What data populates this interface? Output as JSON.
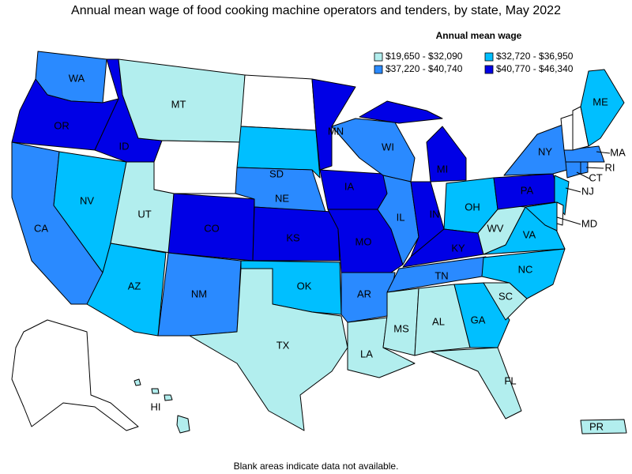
{
  "title": "Annual mean wage of food cooking machine operators and tenders, by state, May 2022",
  "legend": {
    "title": "Annual mean wage",
    "items": [
      {
        "label": "$19,650 - $32,090",
        "color": "#b2eeee"
      },
      {
        "label": "$32,720 - $36,950",
        "color": "#00bfff"
      },
      {
        "label": "$37,220 - $40,740",
        "color": "#2a8aff"
      },
      {
        "label": "$40,770 - $46,340",
        "color": "#0000e6"
      }
    ]
  },
  "states": [
    {
      "label": "WA",
      "color": "#2a8aff"
    },
    {
      "label": "OR",
      "color": "#0000e6"
    },
    {
      "label": "CA",
      "color": "#2a8aff"
    },
    {
      "label": "NV",
      "color": "#00bfff"
    },
    {
      "label": "ID",
      "color": "#0000e6"
    },
    {
      "label": "MT",
      "color": "#b2eeee"
    },
    {
      "label": "UT",
      "color": "#b2eeee"
    },
    {
      "label": "AZ",
      "color": "#00bfff"
    },
    {
      "label": "CO",
      "color": "#0000e6"
    },
    {
      "label": "NM",
      "color": "#2a8aff"
    },
    {
      "label": "SD",
      "color": "#00bfff"
    },
    {
      "label": "NE",
      "color": "#2a8aff"
    },
    {
      "label": "KS",
      "color": "#0000e6"
    },
    {
      "label": "OK",
      "color": "#00bfff"
    },
    {
      "label": "TX",
      "color": "#b2eeee"
    },
    {
      "label": "MN",
      "color": "#0000e6"
    },
    {
      "label": "IA",
      "color": "#0000e6"
    },
    {
      "label": "MO",
      "color": "#0000e6"
    },
    {
      "label": "AR",
      "color": "#2a8aff"
    },
    {
      "label": "LA",
      "color": "#b2eeee"
    },
    {
      "label": "WI",
      "color": "#2a8aff"
    },
    {
      "label": "IL",
      "color": "#2a8aff"
    },
    {
      "label": "MI",
      "color": "#0000e6"
    },
    {
      "label": "IN",
      "color": "#0000e6"
    },
    {
      "label": "OH",
      "color": "#00bfff"
    },
    {
      "label": "KY",
      "color": "#0000e6"
    },
    {
      "label": "TN",
      "color": "#2a8aff"
    },
    {
      "label": "MS",
      "color": "#b2eeee"
    },
    {
      "label": "AL",
      "color": "#b2eeee"
    },
    {
      "label": "GA",
      "color": "#00bfff"
    },
    {
      "label": "FL",
      "color": "#b2eeee"
    },
    {
      "label": "SC",
      "color": "#b2eeee"
    },
    {
      "label": "NC",
      "color": "#00bfff"
    },
    {
      "label": "VA",
      "color": "#00bfff"
    },
    {
      "label": "WV",
      "color": "#b2eeee"
    },
    {
      "label": "PA",
      "color": "#0000e6"
    },
    {
      "label": "NY",
      "color": "#2a8aff"
    },
    {
      "label": "NJ",
      "color": "#00bfff"
    },
    {
      "label": "MD",
      "color": "#00bfff"
    },
    {
      "label": "CT",
      "color": "#2a8aff"
    },
    {
      "label": "RI",
      "color": "#2a8aff"
    },
    {
      "label": "MA",
      "color": "#2a8aff"
    },
    {
      "label": "ME",
      "color": "#00bfff"
    },
    {
      "label": "HI",
      "color": "#b2eeee"
    },
    {
      "label": "PR",
      "color": "#b2eeee"
    }
  ],
  "note": "Blank areas indicate data not available."
}
